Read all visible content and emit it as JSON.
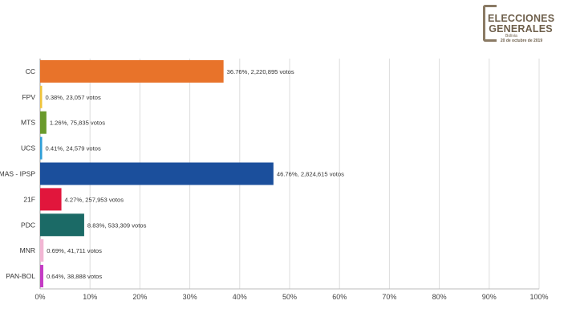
{
  "logo": {
    "line1": "ELECCIONES",
    "line2": "GENERALES",
    "line3": "Bolivia",
    "line4": "20 de octubre de 2019"
  },
  "chart_data": {
    "type": "bar",
    "orientation": "horizontal",
    "categories": [
      "CC",
      "FPV",
      "MTS",
      "UCS",
      "MAS - IPSP",
      "21F",
      "PDC",
      "MNR",
      "PAN-BOL"
    ],
    "values": [
      36.76,
      0.38,
      1.26,
      0.41,
      46.76,
      4.27,
      8.83,
      0.69,
      0.64
    ],
    "labels": [
      "36.76%, 2,220,895 votos",
      "0.38%, 23,057 votos",
      "1.26%, 75,835 votos",
      "0.41%, 24,579 votos",
      "46.76%, 2,824,615 votos",
      "4.27%, 257,953 votos",
      "8.83%, 533,309 votos",
      "0.69%, 41,711 votos",
      "0.64%, 38,888 votos"
    ],
    "colors": [
      "#e8732a",
      "#f0c43a",
      "#6a9a2c",
      "#2f9fd8",
      "#1b4f9c",
      "#e1163c",
      "#1b6a66",
      "#f2b6d4",
      "#c43bc4"
    ],
    "xticks": [
      "0%",
      "10%",
      "20%",
      "30%",
      "40%",
      "50%",
      "60%",
      "70%",
      "80%",
      "90%",
      "100%"
    ],
    "xlim": [
      0,
      100
    ],
    "grid": true
  }
}
